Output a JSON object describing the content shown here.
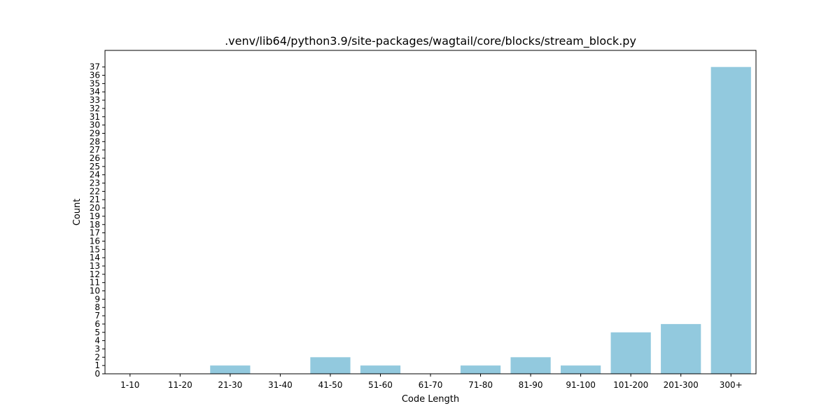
{
  "chart_data": {
    "type": "bar",
    "title": ".venv/lib64/python3.9/site-packages/wagtail/core/blocks/stream_block.py",
    "xlabel": "Code Length",
    "ylabel": "Count",
    "categories": [
      "1-10",
      "11-20",
      "21-30",
      "31-40",
      "41-50",
      "51-60",
      "61-70",
      "71-80",
      "81-90",
      "91-100",
      "101-200",
      "201-300",
      "300+"
    ],
    "values": [
      0,
      0,
      1,
      0,
      2,
      1,
      0,
      1,
      2,
      1,
      5,
      6,
      37
    ],
    "ylim": [
      0,
      39
    ],
    "yticks": [
      0,
      1,
      2,
      3,
      4,
      5,
      6,
      7,
      8,
      9,
      10,
      11,
      12,
      13,
      14,
      15,
      16,
      17,
      18,
      19,
      20,
      21,
      22,
      23,
      24,
      25,
      26,
      27,
      28,
      29,
      30,
      31,
      32,
      33,
      34,
      35,
      36,
      37
    ],
    "bar_color": "#92c9de",
    "grid": false,
    "legend": "none"
  }
}
